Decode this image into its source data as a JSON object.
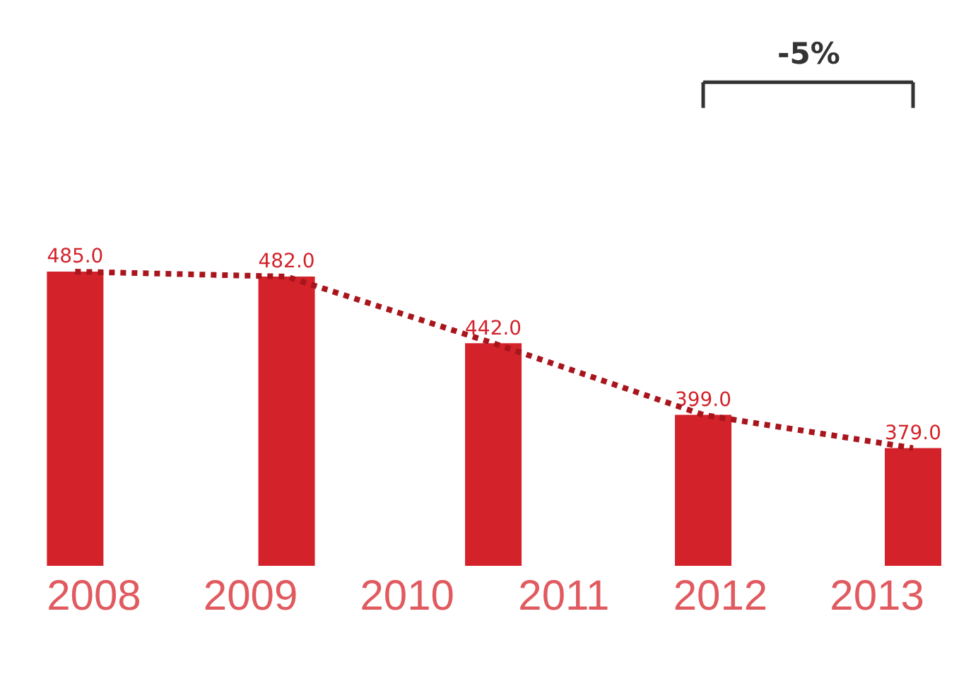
{
  "chart_data": {
    "type": "bar",
    "x": [
      2007.88,
      2009.23,
      2010.55,
      2011.89,
      2013.23
    ],
    "series": [
      {
        "color": "#d3222a",
        "values": [
          485,
          482,
          442,
          399,
          379
        ],
        "value_labels": [
          "485.0",
          "482.0",
          "442.0",
          "399.0",
          "379.0"
        ]
      },
      {
        "type": "line",
        "color": "#a8151c",
        "values": [
          485,
          482,
          442,
          399,
          379
        ],
        "line_style": "dotted",
        "marker": "none"
      }
    ],
    "xlim": [
      2007.4,
      2013.6
    ],
    "xticks": [
      2008,
      2009,
      2010,
      2011,
      2012,
      2013
    ],
    "tick_labels": "x",
    "annotations": [
      "-5%"
    ]
  }
}
